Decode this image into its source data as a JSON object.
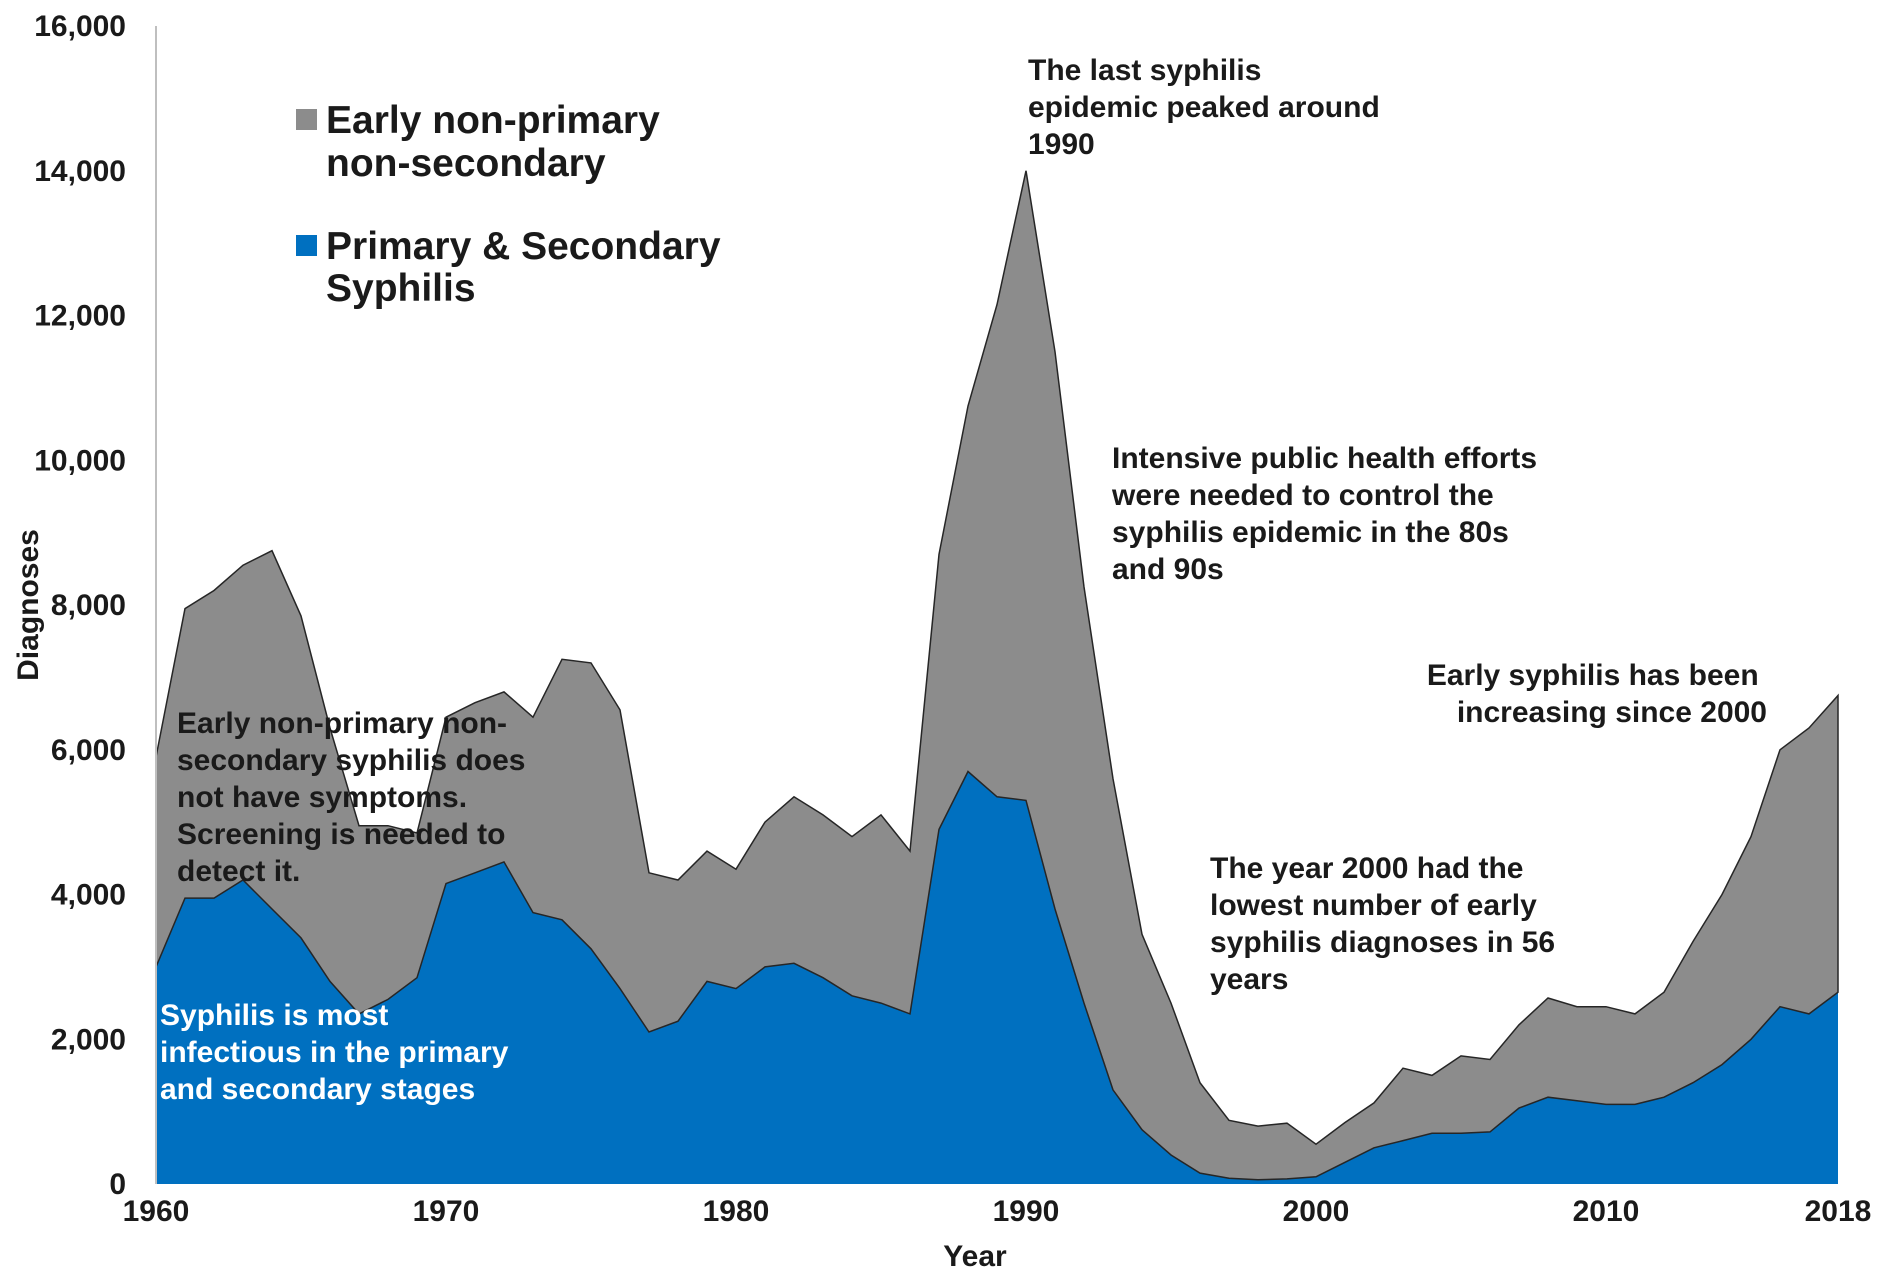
{
  "chart_data": {
    "type": "area",
    "stacked": true,
    "xlabel": "Year",
    "ylabel": "Diagnoses",
    "ylim": [
      0,
      16000
    ],
    "xlim": [
      1960,
      2018
    ],
    "x_ticks": [
      "1960",
      "1970",
      "1980",
      "1990",
      "2000",
      "2010",
      "2018"
    ],
    "y_ticks": [
      "0",
      "2,000",
      "4,000",
      "6,000",
      "8,000",
      "10,000",
      "12,000",
      "14,000",
      "16,000"
    ],
    "grid": false,
    "legend_position": "top-left",
    "x": [
      1960,
      1961,
      1962,
      1963,
      1964,
      1965,
      1966,
      1967,
      1968,
      1969,
      1970,
      1971,
      1972,
      1973,
      1974,
      1975,
      1976,
      1977,
      1978,
      1979,
      1980,
      1981,
      1982,
      1983,
      1984,
      1985,
      1986,
      1987,
      1988,
      1989,
      1990,
      1991,
      1992,
      1993,
      1994,
      1995,
      1996,
      1997,
      1998,
      1999,
      2000,
      2001,
      2002,
      2003,
      2004,
      2005,
      2006,
      2007,
      2008,
      2009,
      2010,
      2011,
      2012,
      2013,
      2014,
      2015,
      2016,
      2017,
      2018
    ],
    "series": [
      {
        "name": "Primary & Secondary Syphilis",
        "color": "#0070c0",
        "values": [
          3000,
          3950,
          3950,
          4200,
          3800,
          3400,
          2800,
          2350,
          2550,
          2850,
          4150,
          4300,
          4450,
          3750,
          3650,
          3250,
          2700,
          2100,
          2250,
          2800,
          2700,
          3000,
          3050,
          2850,
          2600,
          2500,
          2350,
          4900,
          5700,
          5350,
          5300,
          3800,
          2500,
          1300,
          750,
          400,
          150,
          80,
          60,
          70,
          100,
          300,
          500,
          600,
          700,
          700,
          720,
          1050,
          1200,
          1150,
          1100,
          1100,
          1200,
          1400,
          1650,
          2000,
          2450,
          2350,
          2650
        ]
      },
      {
        "name": "Early non-primary non-secondary",
        "color": "#8c8c8c",
        "values": [
          2900,
          4000,
          4250,
          4350,
          4950,
          4450,
          3500,
          2600,
          2400,
          2000,
          2300,
          2350,
          2350,
          2700,
          3600,
          3950,
          3850,
          2200,
          1950,
          1800,
          1650,
          2000,
          2300,
          2250,
          2200,
          2600,
          2250,
          3800,
          5050,
          6800,
          8700,
          7700,
          5750,
          4300,
          2700,
          2100,
          1250,
          800,
          740,
          770,
          450,
          550,
          620,
          1000,
          800,
          1070,
          1000,
          1150,
          1370,
          1300,
          1350,
          1250,
          1450,
          1950,
          2350,
          2800,
          3550,
          3950,
          4100
        ]
      }
    ],
    "annotations": {
      "peak": [
        "The last syphilis",
        "epidemic peaked around",
        "1990"
      ],
      "effort": [
        "Intensive public health efforts",
        "were needed to control the",
        "syphilis epidemic in the 80s",
        "and 90s"
      ],
      "increasing": [
        "Early syphilis has been",
        "increasing since 2000"
      ],
      "lowest": [
        "The year 2000 had the",
        "lowest number of early",
        "syphilis diagnoses in 56",
        "years"
      ],
      "nonprimary": [
        "Early non-primary non-",
        "secondary syphilis does",
        "not have symptoms.",
        "Screening is needed to",
        "detect it."
      ],
      "infectious": [
        "Syphilis is most",
        "infectious in the primary",
        "and secondary stages"
      ]
    },
    "legend": {
      "nps_lines": [
        "Early non-primary",
        "non-secondary"
      ],
      "ps_lines": [
        "Primary & Secondary",
        "Syphilis"
      ]
    }
  }
}
